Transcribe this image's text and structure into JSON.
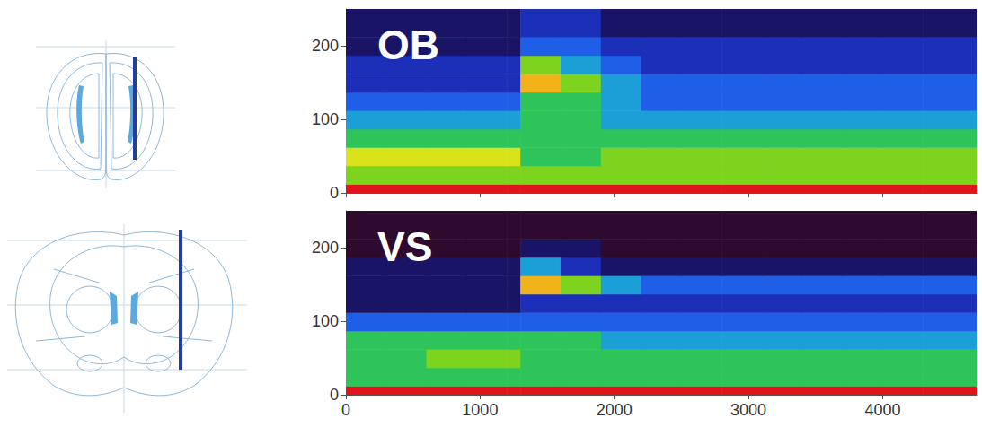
{
  "chart_data": [
    {
      "type": "heatmap",
      "title": "OB",
      "xlim": [
        0,
        4700
      ],
      "xticks": [
        0,
        1000,
        2000,
        3000,
        4000
      ],
      "ylim": [
        0,
        250
      ],
      "yticks": [
        0,
        100,
        200
      ],
      "tick_labels": "y",
      "x_edges": [
        0,
        300,
        600,
        900,
        1200,
        1300,
        1600,
        1900,
        2200,
        2500,
        2800,
        3100,
        3400,
        3700,
        4000,
        4300,
        4700
      ],
      "y_edges": [
        0,
        12,
        37,
        62,
        87,
        112,
        137,
        162,
        187,
        212,
        250
      ],
      "color_range": [
        0,
        10
      ],
      "values": [
        [
          10,
          10,
          10,
          10,
          10,
          10,
          10,
          10,
          10,
          10,
          10,
          10,
          10,
          10,
          10,
          10
        ],
        [
          6,
          6,
          6,
          6,
          6,
          6,
          6,
          6,
          6,
          6,
          6,
          6,
          6,
          6,
          6,
          6
        ],
        [
          7,
          7,
          7,
          7,
          7,
          5,
          5,
          6,
          6,
          6,
          6,
          6,
          6,
          6,
          6,
          6
        ],
        [
          5,
          5,
          5,
          5,
          5,
          5,
          5,
          5,
          5,
          5,
          5,
          5,
          5,
          5,
          5,
          5
        ],
        [
          4,
          4,
          4,
          4,
          4,
          5,
          5,
          4,
          4,
          4,
          4,
          4,
          4,
          4,
          4,
          4
        ],
        [
          3,
          3,
          3,
          3,
          3,
          5,
          5,
          4,
          3,
          3,
          3,
          3,
          3,
          3,
          3,
          3
        ],
        [
          2,
          2,
          2,
          2,
          2,
          8,
          6,
          4,
          3,
          3,
          3,
          3,
          3,
          3,
          3,
          3
        ],
        [
          2,
          2,
          2,
          2,
          2,
          6,
          4,
          3,
          2,
          2,
          2,
          2,
          2,
          2,
          2,
          2
        ],
        [
          1,
          1,
          1,
          1,
          1,
          3,
          3,
          2,
          2,
          2,
          2,
          2,
          2,
          2,
          2,
          2
        ],
        [
          1,
          1,
          1,
          1,
          1,
          2,
          2,
          1,
          1,
          1,
          1,
          1,
          1,
          1,
          1,
          1
        ]
      ]
    },
    {
      "type": "heatmap",
      "title": "VS",
      "xlim": [
        0,
        4700
      ],
      "xticks": [
        0,
        1000,
        2000,
        3000,
        4000
      ],
      "ylim": [
        0,
        250
      ],
      "yticks": [
        0,
        100,
        200
      ],
      "x_edges": [
        0,
        300,
        600,
        900,
        1200,
        1300,
        1600,
        1900,
        2200,
        2500,
        2800,
        3100,
        3400,
        3700,
        4000,
        4300,
        4700
      ],
      "y_edges": [
        0,
        12,
        37,
        62,
        87,
        112,
        137,
        162,
        187,
        212,
        250
      ],
      "color_range": [
        0,
        10
      ],
      "values": [
        [
          10,
          10,
          10,
          10,
          10,
          10,
          10,
          10,
          10,
          10,
          10,
          10,
          10,
          10,
          10,
          10
        ],
        [
          5,
          5,
          5,
          5,
          5,
          5,
          5,
          5,
          5,
          5,
          5,
          5,
          5,
          5,
          5,
          5
        ],
        [
          5,
          5,
          6,
          6,
          6,
          5,
          5,
          5,
          5,
          5,
          5,
          5,
          5,
          5,
          5,
          5
        ],
        [
          5,
          5,
          5,
          5,
          5,
          5,
          5,
          4,
          4,
          4,
          4,
          4,
          4,
          4,
          4,
          4
        ],
        [
          3,
          3,
          3,
          3,
          3,
          3,
          3,
          3,
          3,
          3,
          3,
          3,
          3,
          3,
          3,
          3
        ],
        [
          1,
          1,
          1,
          1,
          1,
          2,
          2,
          2,
          2,
          2,
          2,
          2,
          2,
          2,
          2,
          2
        ],
        [
          1,
          1,
          1,
          1,
          1,
          8,
          6,
          4,
          3,
          3,
          3,
          3,
          3,
          3,
          3,
          3
        ],
        [
          1,
          1,
          1,
          1,
          1,
          4,
          2,
          1,
          1,
          1,
          1,
          1,
          1,
          1,
          1,
          1
        ],
        [
          0,
          0,
          0,
          0,
          0,
          1,
          1,
          0,
          0,
          0,
          0,
          0,
          0,
          0,
          0,
          0
        ],
        [
          0,
          0,
          0,
          0,
          0,
          0,
          0,
          0,
          0,
          0,
          0,
          0,
          0,
          0,
          0,
          0
        ]
      ]
    }
  ]
}
